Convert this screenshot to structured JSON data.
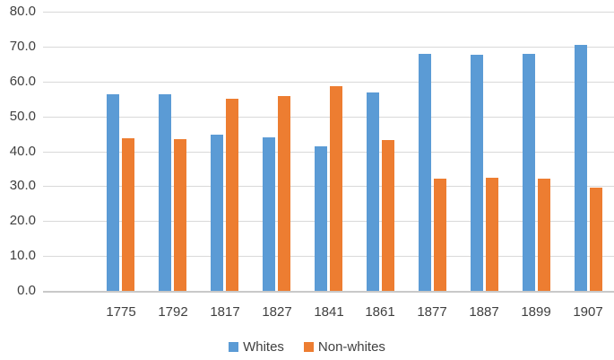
{
  "chart_data": {
    "type": "bar",
    "title": "",
    "xlabel": "",
    "ylabel": "",
    "categories": [
      "1775",
      "1792",
      "1817",
      "1827",
      "1841",
      "1861",
      "1877",
      "1887",
      "1899",
      "1907"
    ],
    "series": [
      {
        "name": "Whites",
        "color": "#5B9BD5",
        "values": [
          56.3,
          56.4,
          44.8,
          44.0,
          41.4,
          56.9,
          67.9,
          67.6,
          68.0,
          70.4
        ]
      },
      {
        "name": "Non-whites",
        "color": "#ED7D31",
        "values": [
          43.8,
          43.6,
          55.1,
          55.8,
          58.6,
          43.1,
          32.2,
          32.4,
          32.1,
          29.7
        ]
      }
    ],
    "ylim": [
      0,
      80
    ],
    "ytick_labels": [
      "0.0",
      "10.0",
      "20.0",
      "30.0",
      "40.0",
      "50.0",
      "60.0",
      "70.0",
      "80.0"
    ],
    "grid": true,
    "gridline_color": "#D9D9D9",
    "axis_text_color": "#404040",
    "background_color": "#FFFFFF",
    "legend_position": "bottom",
    "leading_empty_category_slot": true
  }
}
